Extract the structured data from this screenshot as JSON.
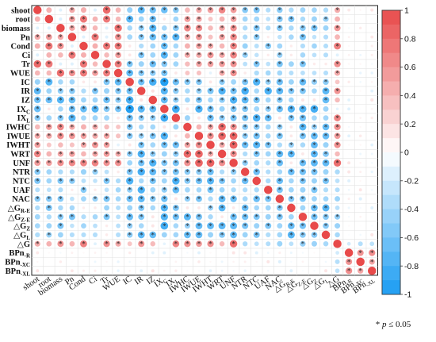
{
  "chart_data": {
    "type": "heatmap",
    "subtype": "correlation-matrix-circles",
    "variables": [
      {
        "id": "shoot",
        "base": "shoot",
        "sub": "",
        "delta": false
      },
      {
        "id": "root",
        "base": "root",
        "sub": "",
        "delta": false
      },
      {
        "id": "biomass",
        "base": "biomass",
        "sub": "",
        "delta": false
      },
      {
        "id": "Pn",
        "base": "Pn",
        "sub": "",
        "delta": false
      },
      {
        "id": "Cond",
        "base": "Cond",
        "sub": "",
        "delta": false
      },
      {
        "id": "Ci",
        "base": "Ci",
        "sub": "",
        "delta": false
      },
      {
        "id": "Tr",
        "base": "Tr",
        "sub": "",
        "delta": false
      },
      {
        "id": "WUE",
        "base": "WUE",
        "sub": "",
        "delta": false
      },
      {
        "id": "IC",
        "base": "IC",
        "sub": "",
        "delta": false
      },
      {
        "id": "IR",
        "base": "IR",
        "sub": "",
        "delta": false
      },
      {
        "id": "IZ",
        "base": "IZ",
        "sub": "",
        "delta": false
      },
      {
        "id": "IXC",
        "base": "IX",
        "sub": "C",
        "delta": false
      },
      {
        "id": "IXL",
        "base": "IX",
        "sub": "L",
        "delta": false
      },
      {
        "id": "IWHC",
        "base": "IWHC",
        "sub": "",
        "delta": false
      },
      {
        "id": "IWUE",
        "base": "IWUE",
        "sub": "",
        "delta": false
      },
      {
        "id": "IWHT",
        "base": "IWHT",
        "sub": "",
        "delta": false
      },
      {
        "id": "WRT",
        "base": "WRT",
        "sub": "",
        "delta": false
      },
      {
        "id": "UNF",
        "base": "UNF",
        "sub": "",
        "delta": false
      },
      {
        "id": "NTR",
        "base": "NTR",
        "sub": "",
        "delta": false
      },
      {
        "id": "NTC",
        "base": "NTC",
        "sub": "",
        "delta": false
      },
      {
        "id": "UAF",
        "base": "UAF",
        "sub": "",
        "delta": false
      },
      {
        "id": "NAC",
        "base": "NAC",
        "sub": "",
        "delta": false
      },
      {
        "id": "dGRE",
        "base": "G",
        "sub": "R-E",
        "delta": true
      },
      {
        "id": "dGZE",
        "base": "G",
        "sub": "Z-E",
        "delta": true
      },
      {
        "id": "dGZ",
        "base": "G",
        "sub": "Z",
        "delta": true
      },
      {
        "id": "dGL",
        "base": "G",
        "sub": "L",
        "delta": true
      },
      {
        "id": "dG",
        "base": "G",
        "sub": "",
        "delta": true
      },
      {
        "id": "BPnR",
        "base": "BPn",
        "sub": "-R",
        "delta": false
      },
      {
        "id": "BPnXC",
        "base": "BPn",
        "sub": "-XC",
        "delta": false
      },
      {
        "id": "BPnXL",
        "base": "BPn",
        "sub": "-XL",
        "delta": false
      }
    ],
    "delta_symbol": "△",
    "group_sizes": [
      8,
      5,
      5,
      8,
      1,
      3
    ],
    "group_signs": [
      [
        1,
        -1,
        1,
        -1,
        1,
        0
      ],
      [
        -1,
        -1,
        -1,
        -1,
        1,
        0
      ],
      [
        1,
        -1,
        1,
        -1,
        1,
        0
      ],
      [
        -1,
        -1,
        -1,
        -1,
        -1,
        0
      ],
      [
        1,
        1,
        1,
        -1,
        1,
        -1
      ],
      [
        0,
        0,
        0,
        0,
        -1,
        1
      ]
    ],
    "group_magnitudes": [
      [
        0.62,
        0.55,
        0.5,
        0.45,
        0.55,
        0.2
      ],
      [
        0.55,
        0.72,
        0.6,
        0.62,
        0.5,
        0.15
      ],
      [
        0.5,
        0.6,
        0.65,
        0.55,
        0.6,
        0.2
      ],
      [
        0.45,
        0.62,
        0.55,
        0.55,
        0.35,
        0.2
      ],
      [
        0.55,
        0.5,
        0.6,
        0.35,
        1.0,
        0.3
      ],
      [
        0.2,
        0.15,
        0.2,
        0.2,
        0.3,
        0.6
      ]
    ],
    "significance_threshold": 0.45,
    "significance_symbol": "*",
    "colorbar": {
      "min": -1,
      "max": 1,
      "ticks": [
        1,
        0.8,
        0.6,
        0.4,
        0.2,
        0,
        -0.2,
        -0.4,
        -0.6,
        -0.8,
        -1
      ],
      "positive_color": "#e84a4a",
      "negative_color": "#1b9cf2",
      "neutral_color": "#ffffff"
    },
    "note": {
      "symbol": "*",
      "italic_p": "p",
      "text": " ≤ 0.05"
    }
  }
}
